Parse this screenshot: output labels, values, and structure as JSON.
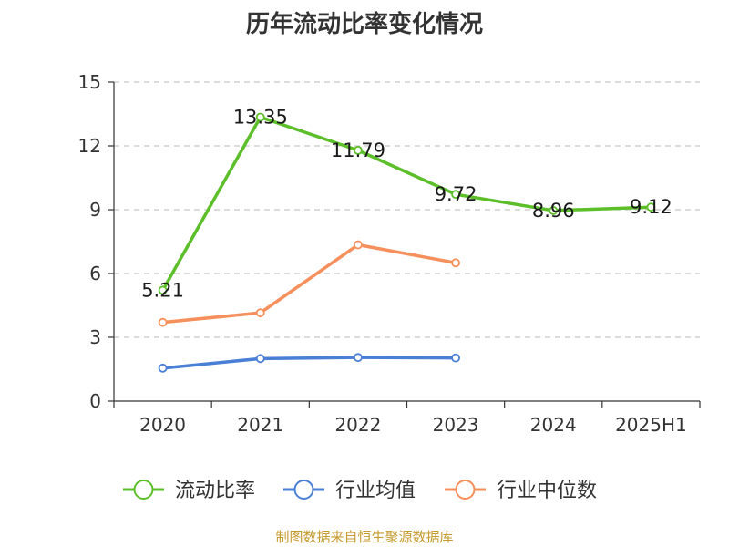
{
  "title": "历年流动比率变化情况",
  "footer": "制图数据来自恒生聚源数据库",
  "chart_data": {
    "type": "line",
    "title": "历年流动比率变化情况",
    "categories": [
      "2020",
      "2021",
      "2022",
      "2023",
      "2024",
      "2025H1"
    ],
    "ylim": [
      0,
      15
    ],
    "yticks": [
      0,
      3,
      6,
      9,
      12,
      15
    ],
    "grid": true,
    "legend_position": "bottom",
    "series": [
      {
        "name": "流动比率",
        "color": "#5cbf2a",
        "values": [
          5.21,
          13.35,
          11.79,
          9.72,
          8.96,
          9.12
        ],
        "labels": [
          "5.21",
          "13.35",
          "11.79",
          "9.72",
          "8.96",
          "9.12"
        ]
      },
      {
        "name": "行业均值",
        "color": "#4a7fd6",
        "values": [
          1.55,
          2.0,
          2.05,
          2.03,
          null,
          null
        ]
      },
      {
        "name": "行业中位数",
        "color": "#f5905c",
        "values": [
          3.7,
          4.15,
          7.35,
          6.5,
          null,
          null
        ]
      }
    ]
  }
}
